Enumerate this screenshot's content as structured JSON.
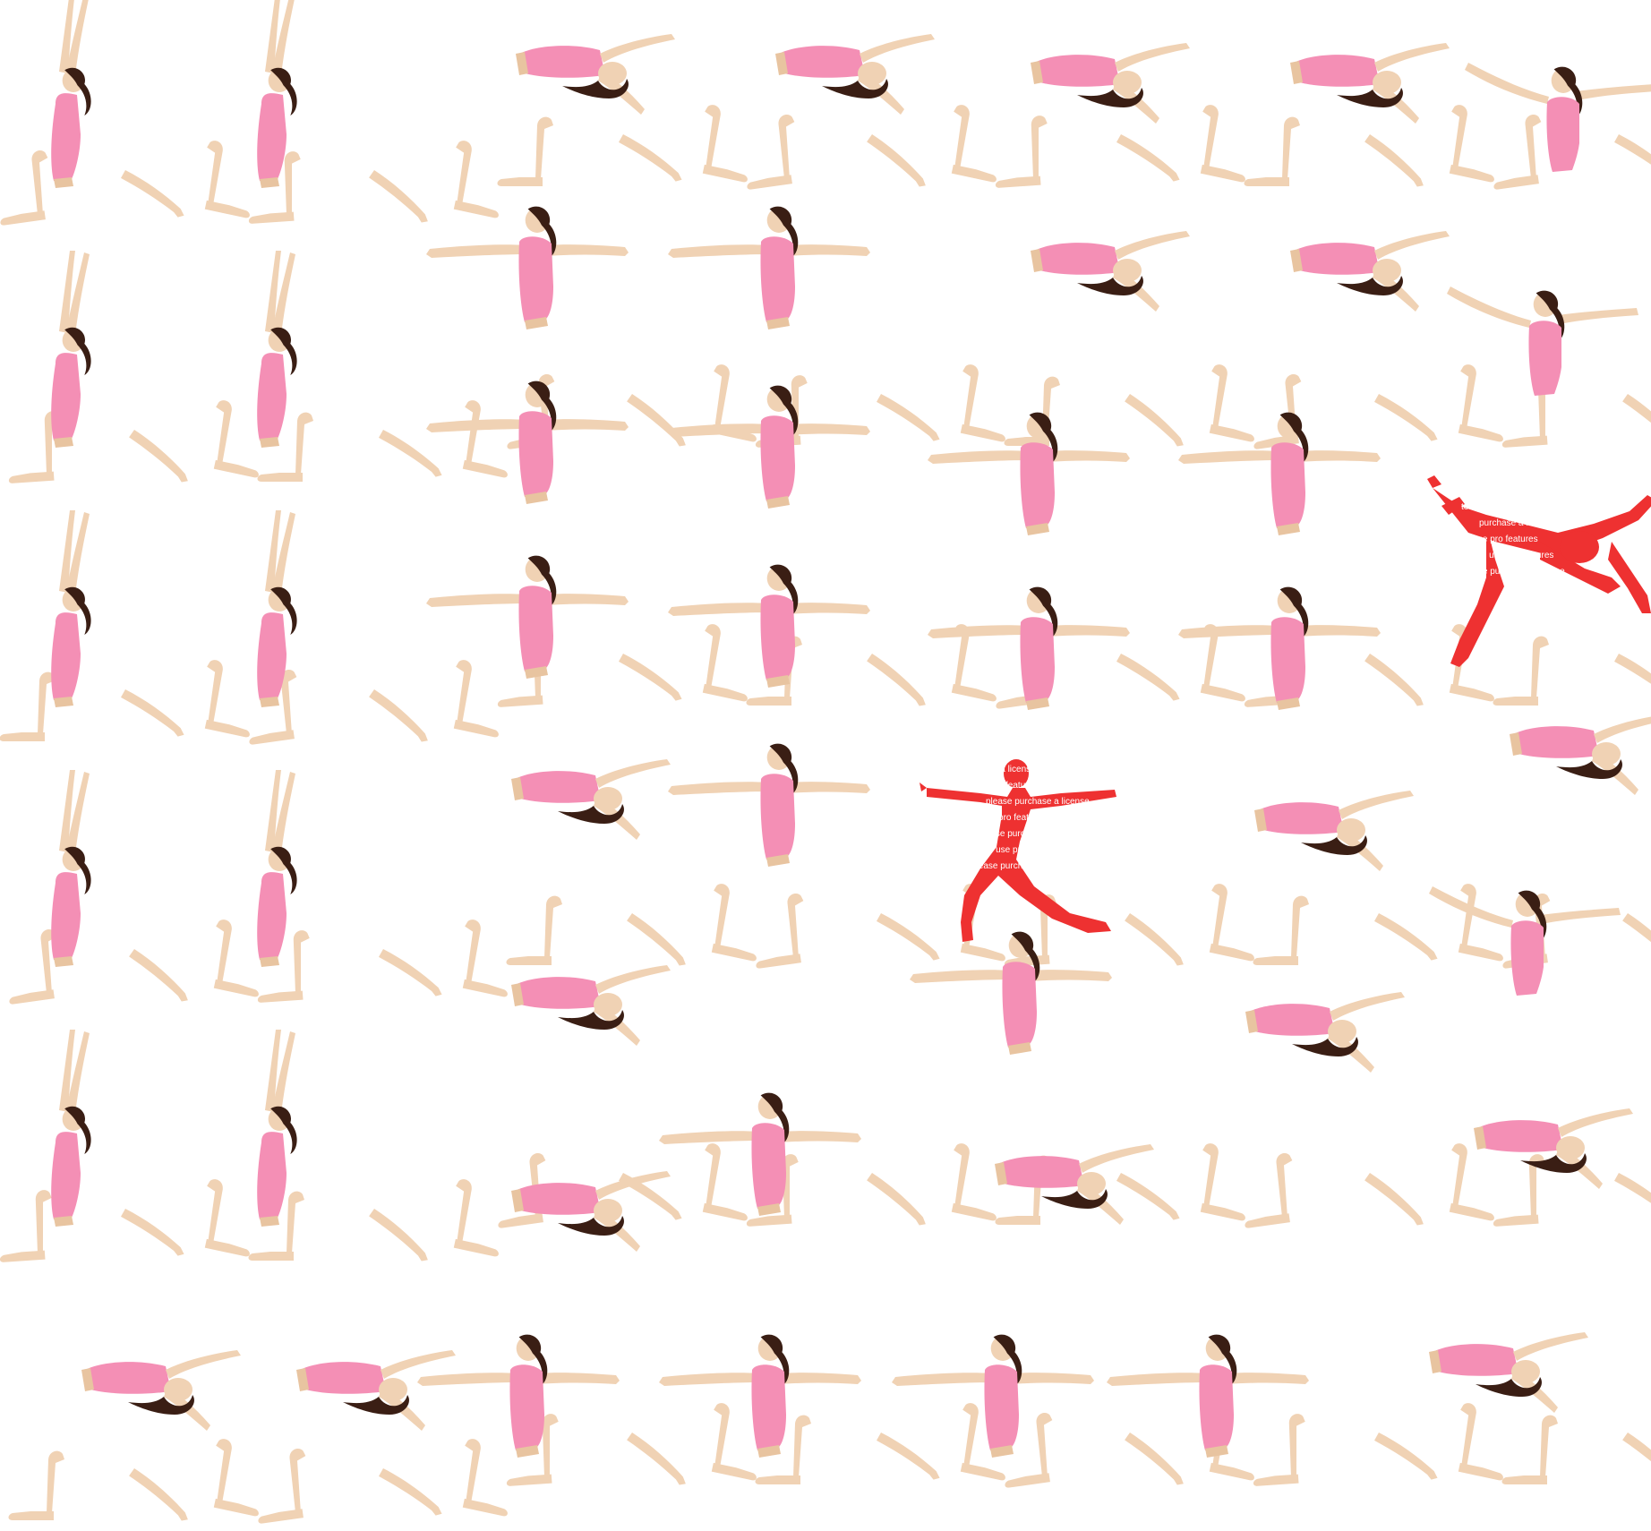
{
  "colors": {
    "background": "#ffffff",
    "skin": "#f0d2b4",
    "skin_shade": "#e8c4a0",
    "shirt": "#f48fb5",
    "shirt_dark": "#ee7fa6",
    "hair": "#3a1e14",
    "watermark": "#ee3131"
  },
  "figures": {
    "columns": [
      {
        "pose": "arms-up",
        "count": 6
      },
      {
        "pose": "arms-up",
        "count": 6
      },
      {
        "pose": "warrior",
        "count": 3,
        "then": "lying",
        "count_after": 3
      },
      {
        "pose": "warrior",
        "count": 6
      },
      {
        "pose": "lying",
        "count": 2,
        "then": "warrior",
        "count_after": 3
      },
      {
        "pose": "lying",
        "count": 2,
        "then": "warrior",
        "count_after": 3
      },
      {
        "pose": "side-bend",
        "count": 6
      }
    ],
    "bottom_row": [
      "lying",
      "lying",
      "warrior",
      "warrior",
      "warrior",
      "warrior",
      "lying"
    ]
  },
  "watermarks": [
    {
      "pose": "star",
      "lines": [
        "to use pro",
        "purchase a license",
        "please pro features",
        "to use pro features",
        "please purchase a license"
      ]
    },
    {
      "pose": "warrior",
      "lines": [
        "please a license",
        "to use features",
        "please purchase a license",
        "to use pro features",
        "please purchase a license",
        "to use pro",
        "please purch"
      ]
    }
  ]
}
